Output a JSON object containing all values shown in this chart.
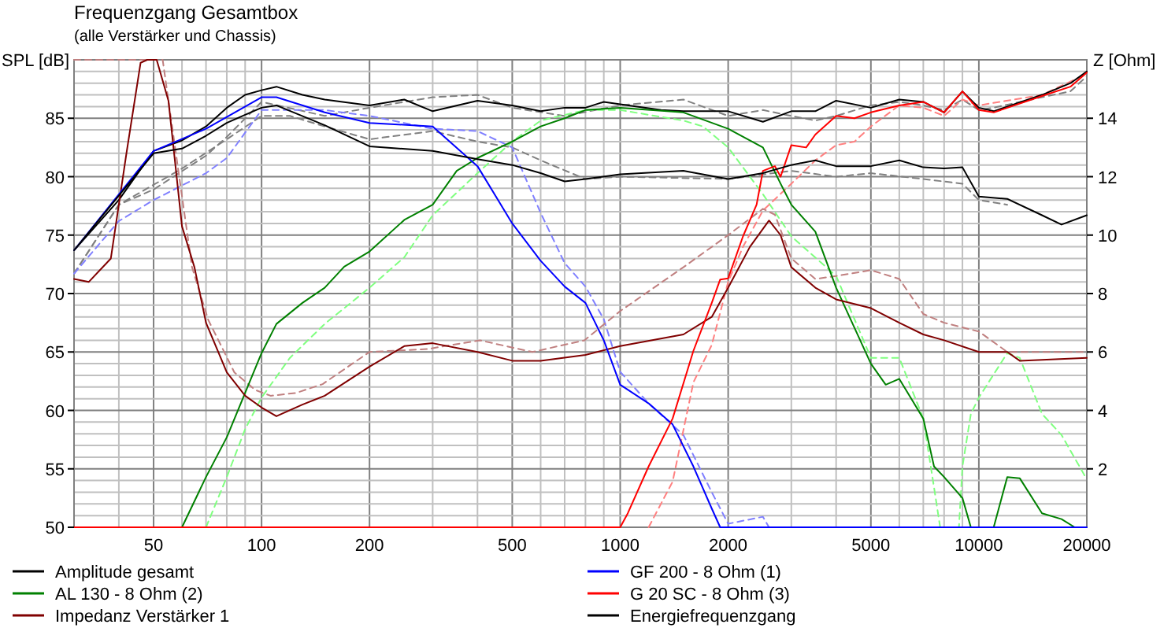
{
  "chart_data": {
    "type": "line",
    "title": "Frequenzgang Gesamtbox",
    "subtitle": "(alle Verstärker und Chassis)",
    "ylabel": "SPL [dB]",
    "y2label": "Z [Ohm]",
    "log": "x",
    "grid": true,
    "legend": "bottom",
    "line_style": "solid",
    "marker": "none",
    "xlim": [
      30,
      20000
    ],
    "ylim": [
      50,
      90
    ],
    "y2lim": [
      0,
      16
    ],
    "xticks": [
      {
        "value": 30,
        "label": null
      },
      {
        "value": 40,
        "label": null
      },
      50,
      {
        "value": 60,
        "label": null
      },
      {
        "value": 70,
        "label": null
      },
      {
        "value": 80,
        "label": null
      },
      {
        "value": 90,
        "label": null
      },
      100,
      200,
      {
        "value": 300,
        "label": null
      },
      {
        "value": 400,
        "label": null
      },
      500,
      {
        "value": 600,
        "label": null
      },
      {
        "value": 700,
        "label": null
      },
      {
        "value": 800,
        "label": null
      },
      {
        "value": 900,
        "label": null
      },
      1000,
      2000,
      {
        "value": 3000,
        "label": null
      },
      {
        "value": 4000,
        "label": null
      },
      5000,
      {
        "value": 6000,
        "label": null
      },
      {
        "value": 7000,
        "label": null
      },
      {
        "value": 8000,
        "label": null
      },
      {
        "value": 9000,
        "label": null
      },
      10000,
      20000
    ],
    "yticks": [
      50,
      {
        "value": 51,
        "label": null
      },
      {
        "value": 52,
        "label": null
      },
      {
        "value": 53,
        "label": null
      },
      {
        "value": 54,
        "label": null
      },
      55,
      {
        "value": 56,
        "label": null
      },
      {
        "value": 57,
        "label": null
      },
      {
        "value": 58,
        "label": null
      },
      {
        "value": 59,
        "label": null
      },
      60,
      {
        "value": 61,
        "label": null
      },
      {
        "value": 62,
        "label": null
      },
      {
        "value": 63,
        "label": null
      },
      {
        "value": 64,
        "label": null
      },
      65,
      {
        "value": 66,
        "label": null
      },
      {
        "value": 67,
        "label": null
      },
      {
        "value": 68,
        "label": null
      },
      {
        "value": 69,
        "label": null
      },
      70,
      {
        "value": 71,
        "label": null
      },
      {
        "value": 72,
        "label": null
      },
      {
        "value": 73,
        "label": null
      },
      {
        "value": 74,
        "label": null
      },
      75,
      {
        "value": 76,
        "label": null
      },
      {
        "value": 77,
        "label": null
      },
      {
        "value": 78,
        "label": null
      },
      {
        "value": 79,
        "label": null
      },
      80,
      {
        "value": 81,
        "label": null
      },
      {
        "value": 82,
        "label": null
      },
      {
        "value": 83,
        "label": null
      },
      {
        "value": 84,
        "label": null
      },
      85,
      {
        "value": 86,
        "label": null
      },
      {
        "value": 87,
        "label": null
      },
      {
        "value": 88,
        "label": null
      },
      {
        "value": 89,
        "label": null
      },
      {
        "value": 90,
        "label": null
      }
    ],
    "y2ticks": [
      2,
      4,
      6,
      8,
      10,
      12,
      14
    ],
    "series": [
      {
        "color": "#808080",
        "line_style": "dashed",
        "x": [
          30,
          40,
          50,
          70,
          80,
          100,
          150,
          200,
          300,
          400,
          500,
          700,
          1000,
          1500,
          2000,
          2500,
          3000,
          3500,
          4000,
          5000,
          6000,
          7000,
          8000,
          9000,
          10000,
          11000,
          15000,
          18000,
          20000
        ],
        "values": [
          71.7,
          77.6,
          78.9,
          81.8,
          83.4,
          86.4,
          85.2,
          85.9,
          86.8,
          87.0,
          85.9,
          85.2,
          86.1,
          86.6,
          85.2,
          85.7,
          85.2,
          84.8,
          85.2,
          86.1,
          86.4,
          86.1,
          85.7,
          86.6,
          85.7,
          85.9,
          86.8,
          87.3,
          88.6
        ]
      },
      {
        "color": "#808080",
        "line_style": "dashed",
        "x": [
          30,
          40,
          60,
          80,
          100,
          120,
          150,
          200,
          300,
          400,
          500,
          600,
          800,
          1000,
          2000,
          3000,
          4000,
          5000,
          7000,
          9000,
          10000,
          12000
        ],
        "values": [
          71.7,
          77.6,
          80.7,
          83.2,
          85.2,
          85.2,
          84.3,
          83.2,
          83.9,
          83.0,
          82.5,
          81.4,
          79.8,
          80.0,
          79.8,
          80.5,
          80.0,
          80.3,
          79.8,
          79.4,
          78.0,
          77.6
        ]
      },
      {
        "color": "#8080ff",
        "line_style": "dashed",
        "x": [
          30,
          40,
          50,
          70,
          80,
          100,
          150,
          200,
          300,
          400,
          500,
          600,
          700,
          800,
          900,
          1000,
          1200,
          1500,
          1800,
          2000,
          2500,
          2600
        ],
        "values": [
          71.7,
          76.2,
          78.0,
          80.3,
          81.6,
          85.7,
          85.7,
          85.2,
          84.1,
          83.9,
          82.5,
          76.9,
          72.6,
          70.6,
          67.8,
          63.3,
          60.6,
          57.9,
          53.0,
          50.3,
          50.9,
          50
        ]
      },
      {
        "color": "#80ff80",
        "line_style": "dashed",
        "x": [
          70,
          80,
          90,
          100,
          120,
          150,
          200,
          250,
          300,
          400,
          500,
          600,
          800,
          1000,
          1500,
          1700,
          2000,
          2500,
          3000,
          4000,
          5000,
          6000,
          7000,
          7500,
          7800,
          8800,
          9000,
          9500,
          10000,
          12000,
          13000,
          15000,
          17000,
          20000
        ],
        "values": [
          50,
          54.3,
          58.4,
          61.1,
          64.5,
          67.4,
          70.5,
          73.1,
          76.7,
          80.3,
          83.0,
          84.8,
          85.7,
          85.7,
          84.8,
          84.3,
          82.5,
          78.5,
          74.9,
          71.5,
          64.5,
          64.5,
          59.3,
          53.4,
          50,
          50,
          55.2,
          59.7,
          61.1,
          64.9,
          64.5,
          59.7,
          57.9,
          54.1
        ]
      },
      {
        "color": "#ff8080",
        "line_style": "dashed",
        "x": [
          1200,
          1400,
          1600,
          1800,
          2000,
          2200,
          2500,
          3000,
          3500,
          4000,
          4500,
          5000,
          6000,
          7000,
          8000,
          9000,
          10000,
          15000,
          20000
        ],
        "values": [
          50,
          53.9,
          62.4,
          65.6,
          71.0,
          74.0,
          77.1,
          79.4,
          81.4,
          82.7,
          83.0,
          84.3,
          86.1,
          85.9,
          85.2,
          86.6,
          86.1,
          87.0,
          88.8
        ]
      },
      {
        "color": "#c08080",
        "line_style": "dashed",
        "axis": "y2",
        "x": [
          30,
          53,
          64,
          71,
          84,
          96,
          106,
          125,
          148,
          200,
          290,
          406,
          569,
          795,
          1000,
          1500,
          2000,
          2500,
          2700,
          3000,
          3500,
          4000,
          5000,
          6000,
          7000,
          8000,
          10000,
          12000,
          15000,
          20000
        ],
        "values": [
          16,
          16,
          8.9,
          7.1,
          5.3,
          4.7,
          4.5,
          4.6,
          4.9,
          6.0,
          6.1,
          6.4,
          6.0,
          6.4,
          7.4,
          8.9,
          10.0,
          10.9,
          10.7,
          9.2,
          8.5,
          8.6,
          8.8,
          8.5,
          7.3,
          7.0,
          6.7,
          6.0,
          6.0,
          6.0
        ]
      },
      {
        "name": "Amplitude gesamt",
        "color": "#000000",
        "x": [
          30,
          40,
          50,
          60,
          70,
          80,
          90,
          100,
          110,
          130,
          150,
          200,
          250,
          300,
          400,
          500,
          600,
          700,
          800,
          900,
          1000,
          1300,
          1500,
          2000,
          2500,
          3000,
          3500,
          4000,
          5000,
          6000,
          7000,
          8000,
          9000,
          10000,
          11000,
          15000,
          18000,
          20000
        ],
        "values": [
          73.7,
          78.0,
          82.2,
          83.1,
          84.3,
          85.9,
          87.0,
          87.4,
          87.7,
          87.0,
          86.6,
          86.1,
          86.6,
          85.6,
          86.5,
          86.1,
          85.6,
          85.9,
          85.9,
          86.4,
          86.2,
          85.7,
          85.6,
          85.6,
          84.7,
          85.6,
          85.6,
          86.5,
          85.9,
          86.6,
          86.4,
          85.5,
          87.3,
          85.9,
          85.6,
          87.0,
          88.0,
          89.0
        ]
      },
      {
        "name": "AL 130 - 8 Ohm (2)",
        "color": "#008000",
        "x": [
          30,
          60,
          70,
          80,
          90,
          100,
          110,
          130,
          150,
          170,
          200,
          250,
          300,
          350,
          400,
          500,
          600,
          700,
          800,
          1000,
          1500,
          2000,
          2500,
          2800,
          3000,
          3500,
          4000,
          5000,
          5500,
          6000,
          7000,
          7500,
          8000,
          9000,
          9500,
          11000,
          12000,
          13000,
          15000,
          17000,
          18500
        ],
        "values": [
          50,
          50,
          54.3,
          57.7,
          61.5,
          64.9,
          67.4,
          69.2,
          70.5,
          72.3,
          73.6,
          76.3,
          77.6,
          80.5,
          81.6,
          83.0,
          84.3,
          85.0,
          85.7,
          85.9,
          85.5,
          84.1,
          82.5,
          79.4,
          77.6,
          75.3,
          70.5,
          64.0,
          62.2,
          62.7,
          59.3,
          55.2,
          54.3,
          52.5,
          50,
          50,
          54.3,
          54.2,
          51.2,
          50.7,
          50
        ]
      },
      {
        "name": "Impedanz Verstärker 1",
        "color": "#800000",
        "axis": "y2",
        "x": [
          30,
          33,
          38,
          42,
          46,
          48,
          51,
          55,
          60,
          65,
          70,
          80,
          90,
          100,
          110,
          130,
          150,
          200,
          250,
          300,
          400,
          500,
          600,
          800,
          1000,
          1500,
          1800,
          2000,
          2300,
          2600,
          2800,
          3000,
          3500,
          4000,
          5000,
          6000,
          7000,
          8000,
          10000,
          12000,
          13000,
          20000
        ],
        "values": [
          8.5,
          8.4,
          9.2,
          12.8,
          15.9,
          16,
          16,
          14.6,
          10.3,
          8.9,
          7.0,
          5.3,
          4.5,
          4.1,
          3.8,
          4.2,
          4.5,
          5.5,
          6.2,
          6.3,
          6.0,
          5.7,
          5.7,
          5.9,
          6.2,
          6.6,
          7.2,
          8.2,
          9.6,
          10.5,
          10.0,
          8.9,
          8.2,
          7.8,
          7.5,
          7.0,
          6.6,
          6.4,
          6.0,
          6.0,
          5.7,
          5.8
        ]
      },
      {
        "name": "GF 200 - 8 Ohm (1)",
        "color": "#0000ff",
        "x": [
          30,
          50,
          70,
          100,
          110,
          150,
          200,
          300,
          400,
          500,
          600,
          700,
          800,
          900,
          1000,
          1200,
          1400,
          1600,
          1800,
          1900,
          20000
        ],
        "values": [
          73.7,
          82.2,
          84.1,
          86.8,
          86.8,
          85.5,
          84.6,
          84.3,
          80.9,
          76.0,
          72.8,
          70.6,
          69.2,
          66.0,
          62.2,
          60.6,
          58.8,
          55.2,
          51.6,
          50,
          50
        ]
      },
      {
        "name": "G 20 SC - 8 Ohm (3)",
        "color": "#ff0000",
        "x": [
          30,
          1000,
          1050,
          1200,
          1400,
          1600,
          1800,
          1900,
          2000,
          2200,
          2400,
          2500,
          2700,
          2800,
          3000,
          3300,
          3500,
          4000,
          4500,
          5000,
          6000,
          7000,
          8000,
          9000,
          10000,
          11000,
          15000,
          18000,
          20000
        ],
        "values": [
          50,
          50,
          51.2,
          55.2,
          59.3,
          65.1,
          69.2,
          71.2,
          71.3,
          74.9,
          77.6,
          80.5,
          80.9,
          80.0,
          82.7,
          82.5,
          83.6,
          85.2,
          85.0,
          85.5,
          86.1,
          86.4,
          85.5,
          87.3,
          85.7,
          85.5,
          86.9,
          87.7,
          88.9
        ]
      },
      {
        "name": "Energiefrequenzgang",
        "color": "#000000",
        "x": [
          30,
          50,
          60,
          70,
          80,
          90,
          100,
          110,
          150,
          200,
          300,
          400,
          500,
          600,
          700,
          800,
          1000,
          1500,
          2000,
          2500,
          3000,
          3500,
          4000,
          5000,
          6000,
          7000,
          8000,
          9000,
          10000,
          12000,
          15000,
          17000,
          20000
        ],
        "values": [
          73.7,
          82.0,
          82.4,
          83.5,
          84.6,
          85.3,
          85.9,
          86.1,
          84.4,
          82.6,
          82.2,
          81.5,
          81.0,
          80.3,
          79.6,
          79.8,
          80.2,
          80.5,
          79.8,
          80.3,
          81.0,
          81.4,
          80.9,
          80.9,
          81.4,
          80.8,
          80.7,
          80.8,
          78.3,
          78.1,
          76.7,
          75.9,
          76.7
        ]
      }
    ]
  }
}
